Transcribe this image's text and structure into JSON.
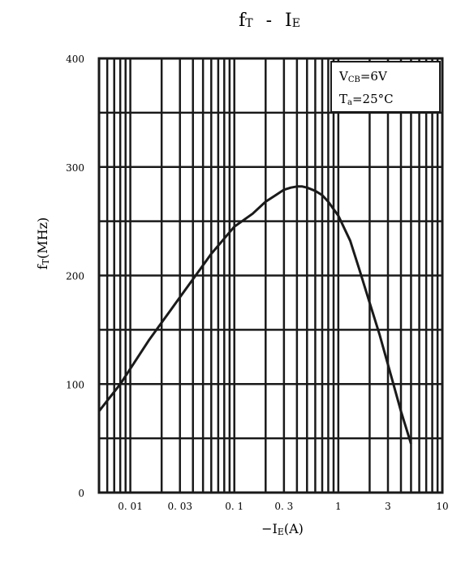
{
  "chart_data": {
    "type": "line",
    "title": {
      "main1": "f",
      "sub1": "T",
      "dash": "-",
      "main2": "I",
      "sub2": "E"
    },
    "xlabel": {
      "prefix": "−I",
      "sub": "E",
      "suffix": "(A)"
    },
    "ylabel": {
      "main": "f",
      "sub": "T",
      "suffix": "(MHz)"
    },
    "x_scale": "log",
    "xlim": [
      0.005,
      10
    ],
    "ylim": [
      0,
      400
    ],
    "x_ticks": [
      {
        "value": 0.01,
        "label": "0. 01"
      },
      {
        "value": 0.03,
        "label": "0. 03"
      },
      {
        "value": 0.1,
        "label": "0. 1"
      },
      {
        "value": 0.3,
        "label": "0. 3"
      },
      {
        "value": 1,
        "label": "1"
      },
      {
        "value": 3,
        "label": "3"
      },
      {
        "value": 10,
        "label": "10"
      }
    ],
    "y_ticks": [
      {
        "value": 0,
        "label": "0"
      },
      {
        "value": 100,
        "label": "100"
      },
      {
        "value": 200,
        "label": "200"
      },
      {
        "value": 300,
        "label": "300"
      },
      {
        "value": 400,
        "label": "400"
      }
    ],
    "grid": true,
    "series": [
      {
        "x": [
          0.005,
          0.008,
          0.015,
          0.03,
          0.06,
          0.1,
          0.15,
          0.2,
          0.25,
          0.3,
          0.35,
          0.4,
          0.45,
          0.5,
          0.6,
          0.7,
          0.8,
          1.0,
          1.3,
          1.6,
          2.0,
          2.5,
          3.0,
          4.0,
          5.0
        ],
        "y": [
          75,
          100,
          140,
          180,
          220,
          245,
          257,
          268,
          274,
          279,
          281,
          282,
          282,
          281,
          278,
          274,
          268,
          255,
          232,
          205,
          175,
          145,
          118,
          75,
          45
        ]
      }
    ],
    "legend": {
      "line1": {
        "main": "V",
        "sub": "CB",
        "rest": "=6V"
      },
      "line2": {
        "main": "T",
        "sub": "a",
        "rest": "=25°C"
      },
      "position": "top-right"
    }
  }
}
